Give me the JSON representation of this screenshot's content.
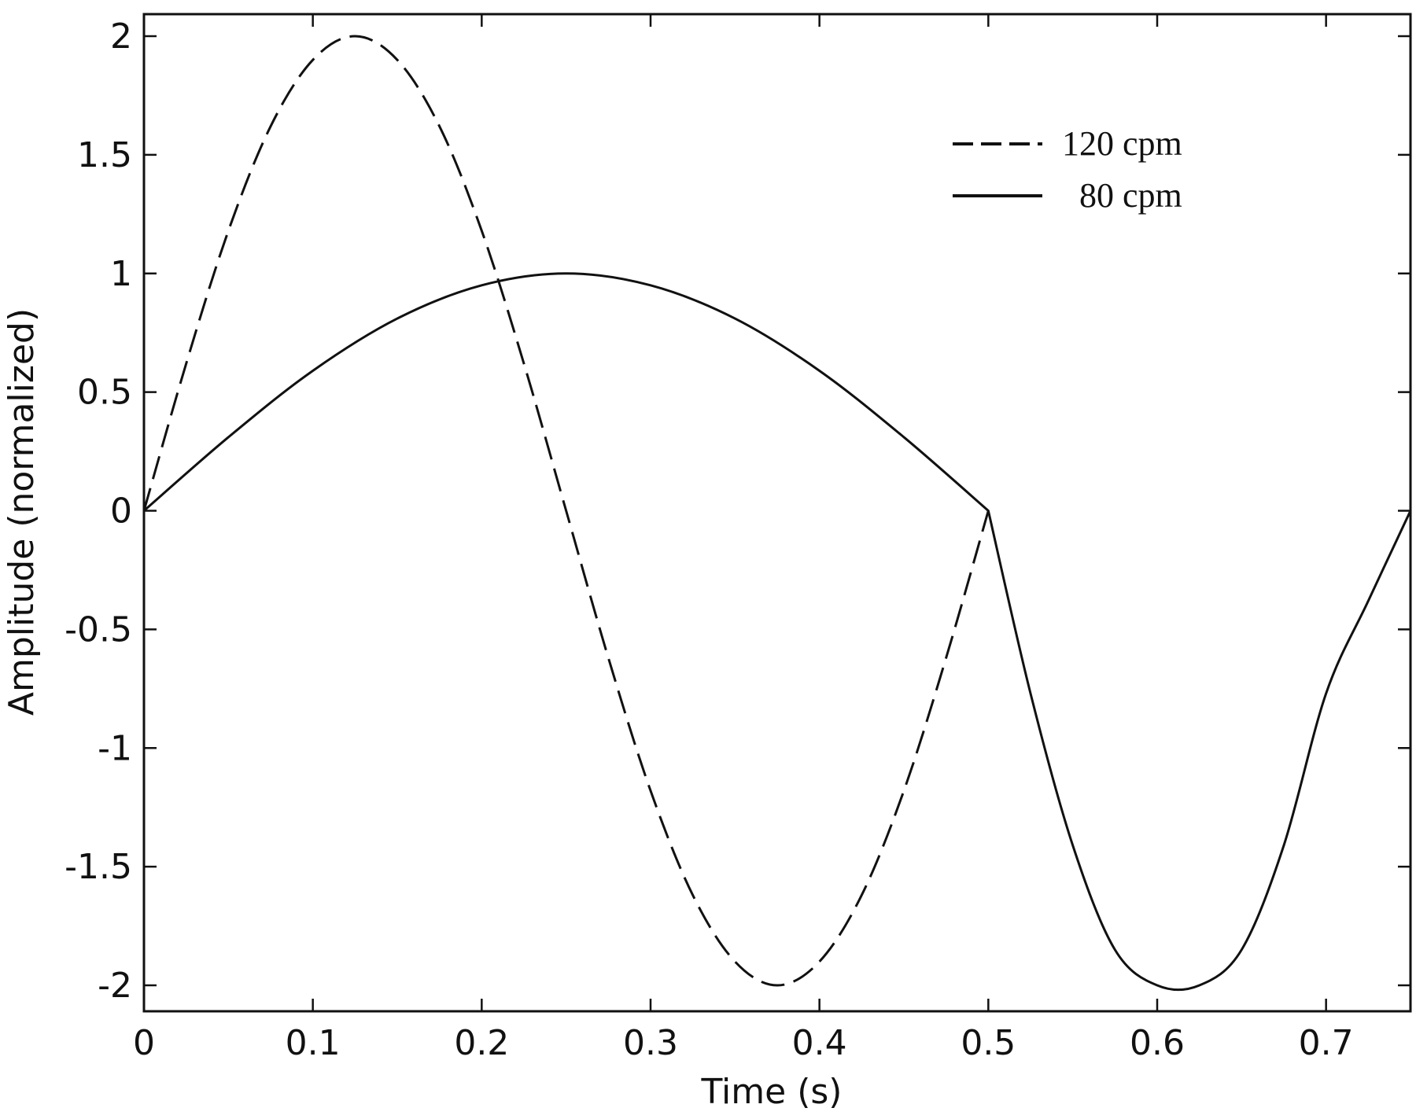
{
  "chart_data": {
    "type": "line",
    "xlabel": "Time (s)",
    "ylabel": "Amplitude (normalized)",
    "xlim": [
      0,
      0.75
    ],
    "ylim": [
      -2.1,
      2.1
    ],
    "x_ticks": [
      0,
      0.1,
      0.2,
      0.3,
      0.4,
      0.5,
      0.6,
      0.7
    ],
    "x_tick_labels": [
      "0",
      "0.1",
      "0.2",
      "0.3",
      "0.4",
      "0.5",
      "0.6",
      "0.7"
    ],
    "y_ticks": [
      2,
      1.5,
      1,
      0.5,
      0,
      -0.5,
      -1,
      -1.5,
      -2
    ],
    "y_tick_labels": [
      "2",
      "1.5",
      "1",
      "0.5",
      "0",
      "-0.5",
      "-1",
      "-1.5",
      "-2"
    ],
    "grid": false,
    "legend_position": "top-right",
    "series": [
      {
        "name": "120 cpm",
        "style": "dashed",
        "color": "#111111",
        "x": [
          0,
          0.025,
          0.05,
          0.075,
          0.1,
          0.125,
          0.15,
          0.175,
          0.2,
          0.225,
          0.25,
          0.275,
          0.3,
          0.325,
          0.35,
          0.375,
          0.4,
          0.425,
          0.45,
          0.475,
          0.5
        ],
        "y": [
          0,
          0.62,
          1.18,
          1.62,
          1.9,
          2.0,
          1.9,
          1.62,
          1.18,
          0.62,
          0,
          -0.62,
          -1.18,
          -1.62,
          -1.9,
          -2.0,
          -1.9,
          -1.62,
          -1.18,
          -0.62,
          0
        ]
      },
      {
        "name": "80 cpm",
        "style": "solid",
        "color": "#111111",
        "x": [
          0,
          0.05,
          0.1,
          0.15,
          0.2,
          0.25,
          0.3,
          0.35,
          0.4,
          0.45,
          0.5,
          0.525,
          0.55,
          0.575,
          0.6,
          0.625,
          0.65,
          0.675,
          0.7,
          0.725,
          0.75
        ],
        "y": [
          0,
          0.31,
          0.59,
          0.81,
          0.95,
          1.0,
          0.95,
          0.81,
          0.59,
          0.31,
          0,
          -0.77,
          -1.41,
          -1.85,
          -2.0,
          -2.0,
          -1.85,
          -1.41,
          -0.77,
          -0.38,
          0
        ]
      }
    ]
  }
}
